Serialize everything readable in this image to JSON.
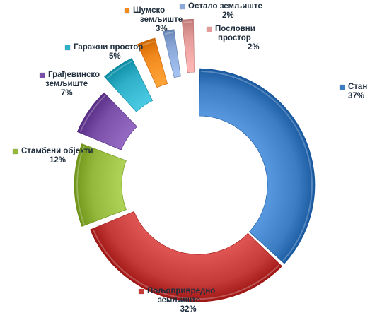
{
  "chart_data": {
    "type": "pie",
    "variant": "exploded-donut",
    "title": "",
    "legend": "labels-outside",
    "slices": [
      {
        "name": "Стан",
        "value": 37,
        "label": "37%",
        "color": "#3c7dc4"
      },
      {
        "name": "Пољопривредно земљиште",
        "name_lines": [
          "Пољопривредно",
          "земљиште"
        ],
        "value": 32,
        "label": "32%",
        "color": "#c43a38"
      },
      {
        "name": "Стамбени објекти",
        "name_lines": [
          "Стамбени објекти"
        ],
        "value": 12,
        "label": "12%",
        "color": "#93b83c"
      },
      {
        "name": "Грађевинско земљиште",
        "name_lines": [
          "Грађевинско",
          "земљиште"
        ],
        "value": 7,
        "label": "7%",
        "color": "#7a4fa8"
      },
      {
        "name": "Гаражни простор",
        "name_lines": [
          "Гаражни простор"
        ],
        "value": 5,
        "label": "5%",
        "color": "#2fb0c8"
      },
      {
        "name": "Шумско земљиште",
        "name_lines": [
          "Шумско",
          "земљиште"
        ],
        "value": 3,
        "label": "3%",
        "color": "#f28a1e"
      },
      {
        "name": "Остало земљиште",
        "name_lines": [
          "Остало земљиште"
        ],
        "value": 2,
        "label": "2%",
        "color": "#8aa8d8"
      },
      {
        "name": "Пословни простор",
        "name_lines": [
          "Пословни",
          "простор"
        ],
        "value": 2,
        "label": "2%",
        "color": "#e49c9a"
      }
    ]
  }
}
